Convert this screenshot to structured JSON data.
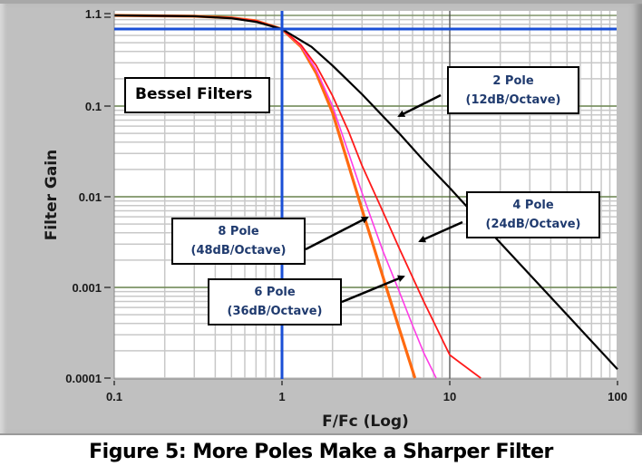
{
  "caption": "Figure 5: More Poles Make a Sharper Filter",
  "chart_data": {
    "type": "line",
    "title": "Bessel Filters",
    "xlabel": "F/Fc (Log)",
    "ylabel": "Filter Gain",
    "xscale": "log",
    "yscale": "log",
    "xlim": [
      0.1,
      100
    ],
    "ylim": [
      0.0001,
      1.1
    ],
    "x_ticks": [
      "0.1",
      "1",
      "10",
      "100"
    ],
    "y_ticks": [
      "1.1",
      "0.1",
      "0.01",
      "0.001",
      "0.0001"
    ],
    "grid": true,
    "cursor": {
      "x": 1,
      "y": 0.707,
      "color": "#1a4fd6"
    },
    "series": [
      {
        "name": "2 Pole",
        "color": "#000000",
        "width": 2.2,
        "x": [
          0.1,
          0.3,
          0.5,
          0.7,
          1,
          1.5,
          2,
          3,
          5,
          7,
          10,
          20,
          50,
          100
        ],
        "y": [
          1.0,
          0.98,
          0.93,
          0.85,
          0.707,
          0.45,
          0.28,
          0.135,
          0.05,
          0.025,
          0.0125,
          0.0031,
          0.0005,
          0.000125
        ]
      },
      {
        "name": "4 Pole",
        "color": "#ff1a1a",
        "width": 1.8,
        "x": [
          0.1,
          0.3,
          0.5,
          0.7,
          1,
          1.3,
          1.6,
          2,
          2.5,
          3,
          4,
          5,
          7,
          10,
          15.3
        ],
        "y": [
          1.0,
          0.98,
          0.94,
          0.87,
          0.707,
          0.47,
          0.28,
          0.13,
          0.052,
          0.022,
          0.0068,
          0.0027,
          0.0007,
          0.00018,
          0.0001
        ]
      },
      {
        "name": "6 Pole",
        "color": "#ff3ce6",
        "width": 1.6,
        "x": [
          0.1,
          0.3,
          0.5,
          0.7,
          1,
          1.3,
          1.6,
          2,
          2.5,
          3,
          4,
          5,
          6,
          7,
          8.3
        ],
        "y": [
          1.0,
          0.98,
          0.94,
          0.87,
          0.707,
          0.46,
          0.25,
          0.1,
          0.03,
          0.011,
          0.0025,
          0.0009,
          0.00038,
          0.00019,
          0.0001
        ]
      },
      {
        "name": "8 Pole",
        "color": "#ff6a10",
        "width": 3.2,
        "x": [
          0.1,
          0.3,
          0.5,
          0.7,
          1,
          1.3,
          1.6,
          2,
          2.5,
          3,
          3.5,
          4,
          5,
          6.2
        ],
        "y": [
          1.0,
          0.98,
          0.94,
          0.87,
          0.707,
          0.45,
          0.23,
          0.085,
          0.022,
          0.0072,
          0.0029,
          0.0013,
          0.00035,
          0.0001
        ]
      }
    ],
    "annotations": [
      {
        "line1": "2 Pole",
        "line2": "(12dB/Octave)"
      },
      {
        "line1": "4 Pole",
        "line2": "(24dB/Octave)"
      },
      {
        "line1": "8 Pole",
        "line2": "(48dB/Octave)"
      },
      {
        "line1": "6 Pole",
        "line2": "(36dB/Octave)"
      }
    ]
  }
}
